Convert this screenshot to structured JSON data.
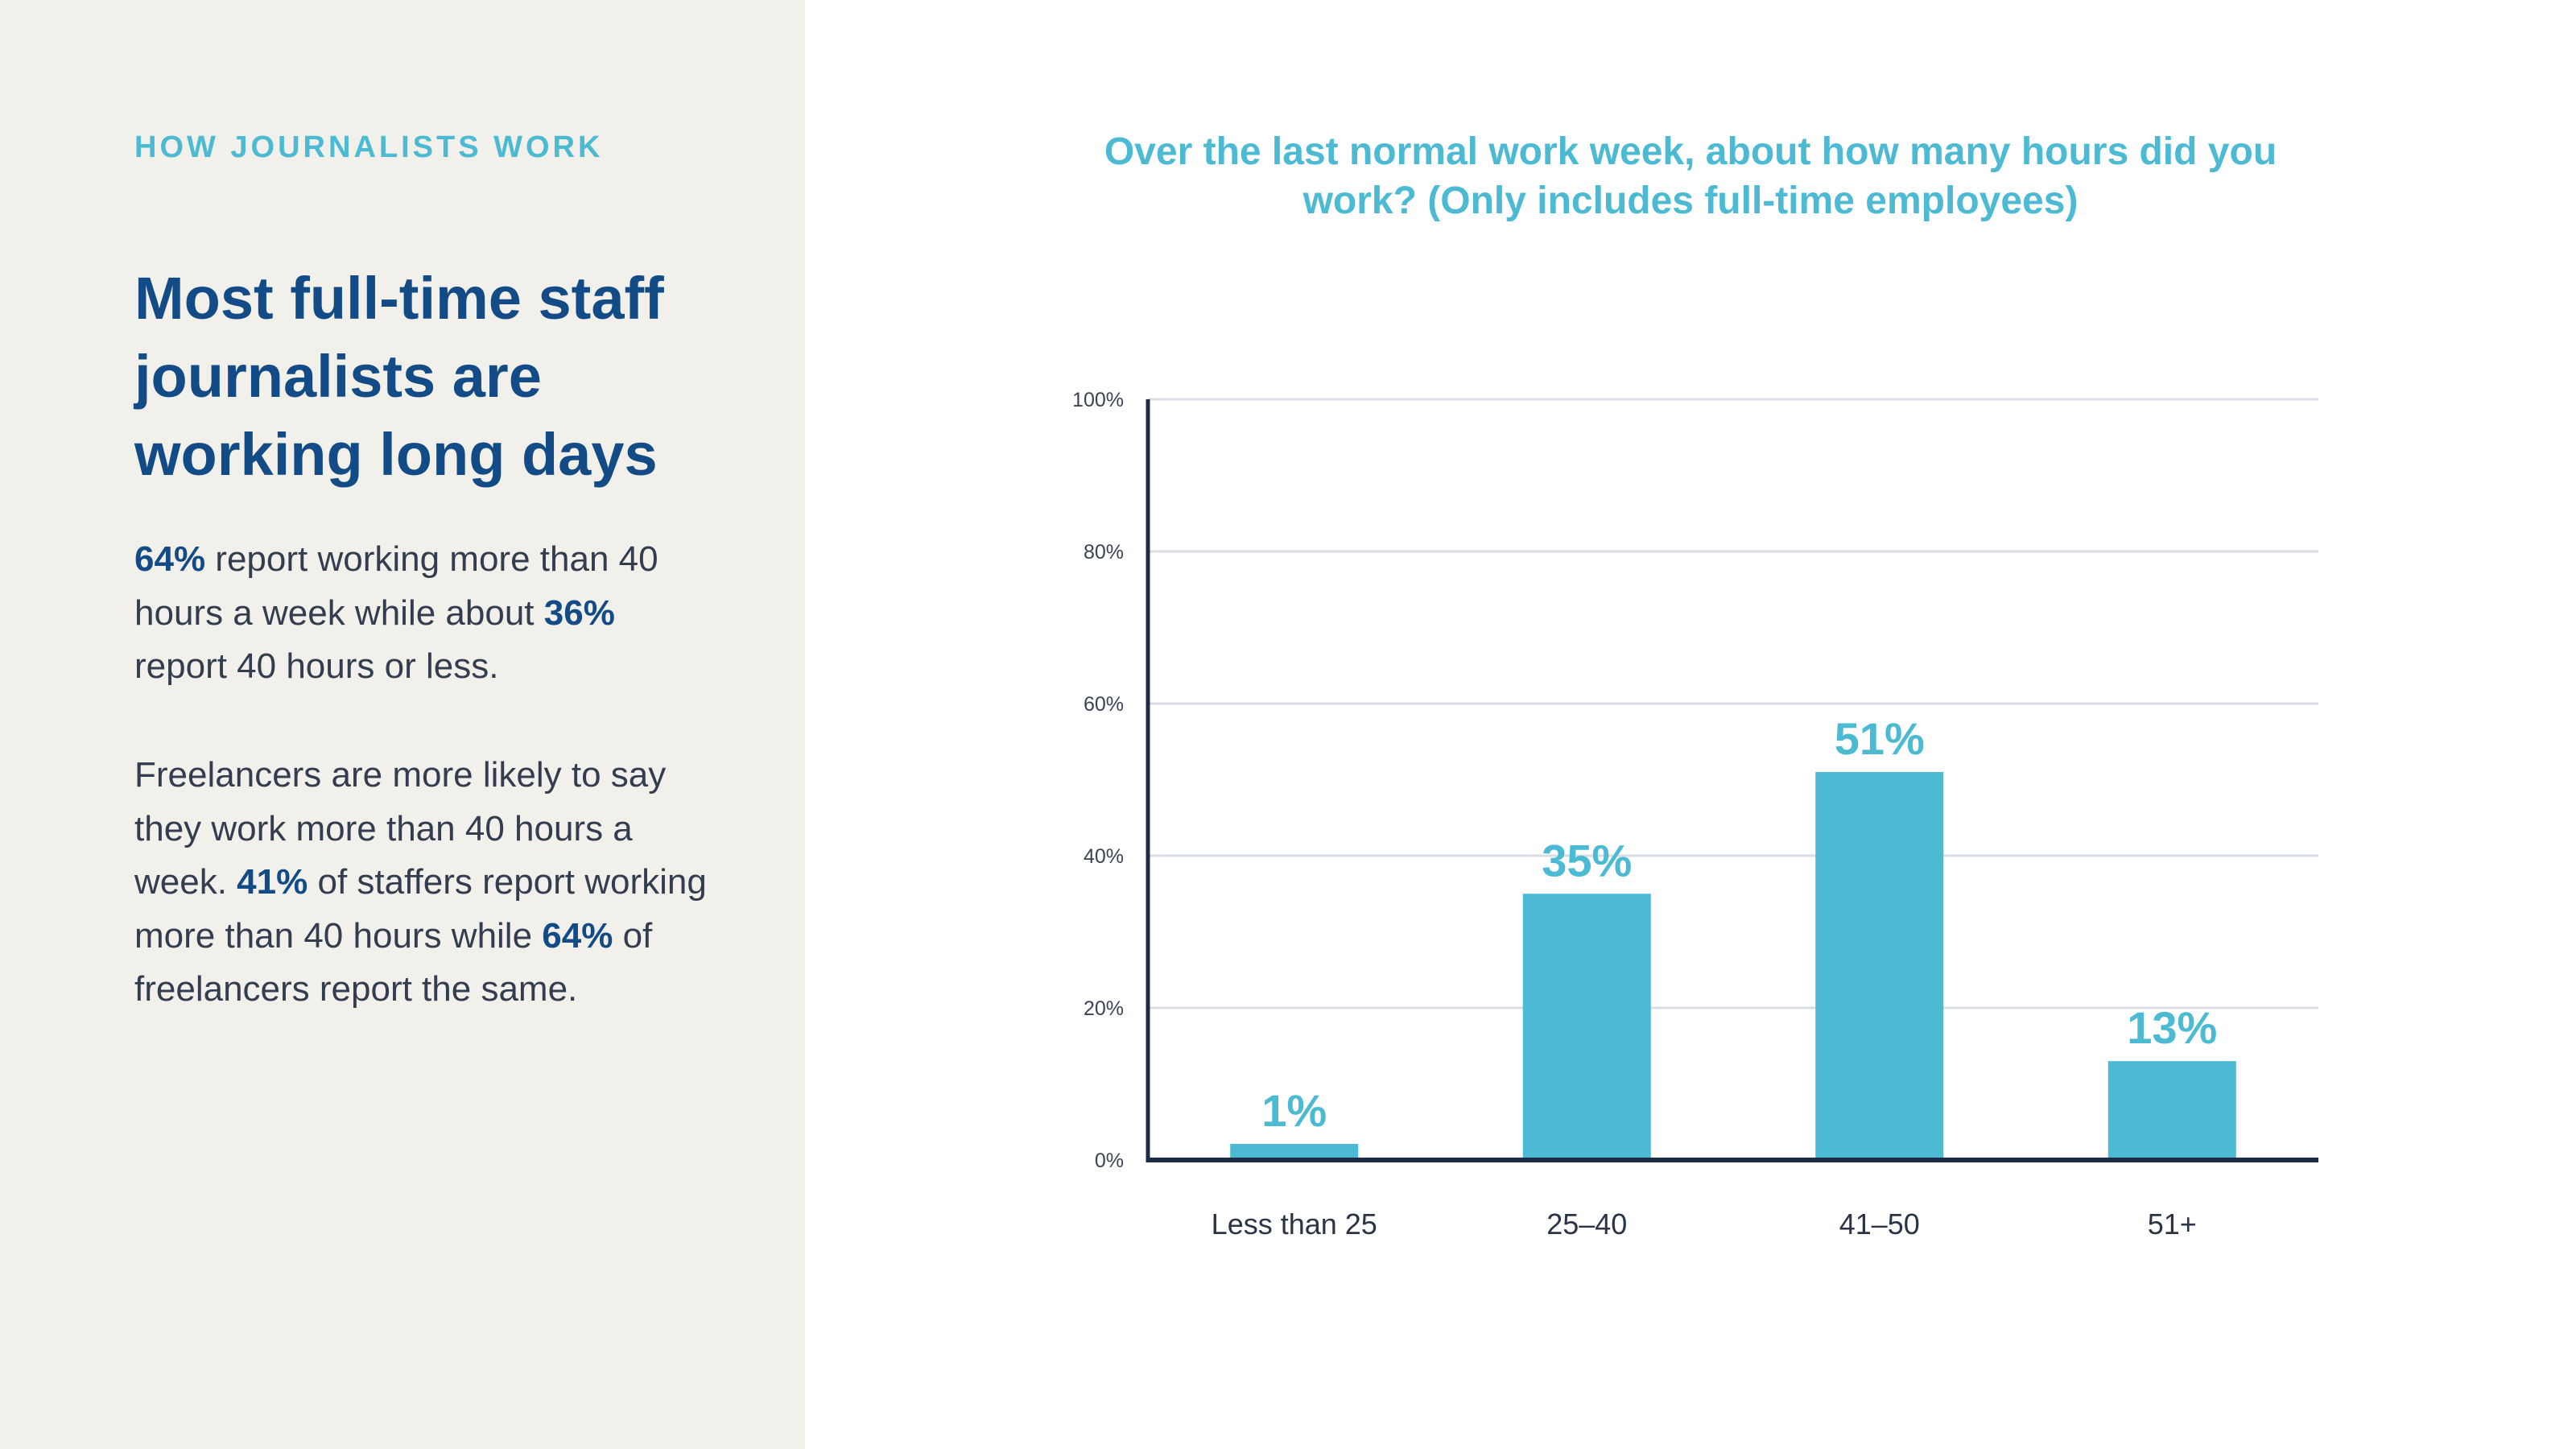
{
  "left_panel": {
    "kicker": "HOW JOURNALISTS WORK",
    "headline": "Most full-time staff journalists are working long days",
    "paragraph1": {
      "stat1": "64%",
      "text1": " report working more than 40 hours a week while about ",
      "stat2": "36%",
      "text2": " report 40 hours or less."
    },
    "paragraph2": {
      "text1": "Freelancers are more likely to say they work more than 40 hours a week. ",
      "stat1": "41%",
      "text2": " of staffers report working more than 40 hours while ",
      "stat2": "64%",
      "text3": " of freelancers report the same."
    }
  },
  "chart_data": {
    "type": "bar",
    "title": "Over the last normal work week, about how many hours did you work?  (Only includes full-time employees)",
    "xlabel": "",
    "ylabel": "",
    "categories": [
      "Less than 25",
      "25–40",
      "41–50",
      "51+"
    ],
    "values": [
      1,
      35,
      51,
      13
    ],
    "data_labels": [
      "1%",
      "35%",
      "51%",
      "13%"
    ],
    "ylim": [
      0,
      100
    ],
    "yticks": [
      0,
      20,
      40,
      60,
      80,
      100
    ],
    "ytick_labels": [
      "0%",
      "20%",
      "40%",
      "60%",
      "80%",
      "100%"
    ],
    "grid": true,
    "legend": "none",
    "colors": {
      "bar": "#4bbad2",
      "axis": "#1c2a45",
      "grid": "#d8dce3"
    }
  }
}
